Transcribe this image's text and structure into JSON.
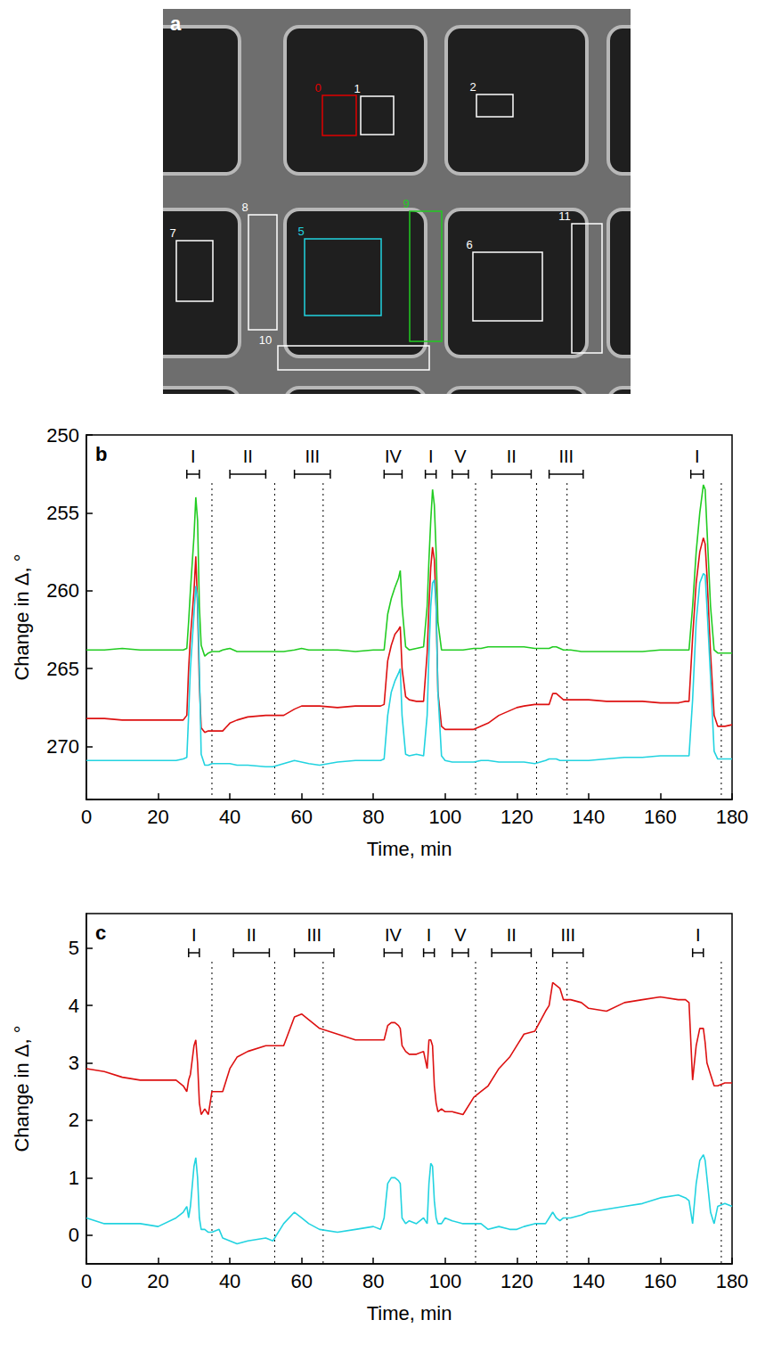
{
  "image_panel": {
    "panel_label": "a",
    "rois": [
      {
        "label": "0",
        "color": "#e00000"
      },
      {
        "label": "1",
        "color": "#ffffff"
      },
      {
        "label": "2",
        "color": "#ffffff"
      },
      {
        "label": "5",
        "color": "#22d3e0"
      },
      {
        "label": "6",
        "color": "#ffffff"
      },
      {
        "label": "7",
        "color": "#ffffff"
      },
      {
        "label": "8",
        "color": "#ffffff"
      },
      {
        "label": "9",
        "color": "#22cc22"
      },
      {
        "label": "10",
        "color": "#ffffff"
      },
      {
        "label": "11",
        "color": "#ffffff"
      }
    ]
  },
  "chart_data": [
    {
      "type": "line",
      "panel_label": "b",
      "x_label": "Time, min",
      "y_label": "Change in Δ, °",
      "xlim": [
        0,
        180
      ],
      "xticks": [
        0,
        20,
        40,
        60,
        80,
        100,
        120,
        140,
        160,
        180
      ],
      "ylim": [
        273.4,
        250
      ],
      "yticks": [
        250,
        255,
        260,
        265,
        270
      ],
      "x": [
        0,
        5,
        10,
        15,
        20,
        25,
        27,
        28,
        28.5,
        29,
        30,
        30.5,
        31,
        31.5,
        32,
        33,
        34,
        35,
        37,
        38,
        40,
        42,
        45,
        50,
        52,
        55,
        58,
        60,
        62,
        65,
        70,
        75,
        80,
        82,
        83,
        84,
        85,
        86,
        87,
        87.5,
        88,
        89,
        90,
        92,
        94,
        95,
        95.5,
        96,
        96.5,
        97,
        97.5,
        98,
        99,
        100,
        102,
        105,
        108,
        110,
        112,
        115,
        118,
        120,
        122,
        125,
        128,
        129,
        130,
        131,
        132,
        133,
        135,
        138,
        140,
        145,
        150,
        155,
        160,
        165,
        167,
        168,
        169,
        170,
        171,
        172,
        172.5,
        173,
        174,
        175,
        176,
        178,
        180
      ],
      "series": [
        {
          "color": "#22cc22",
          "values": [
            263.8,
            263.8,
            263.7,
            263.8,
            263.8,
            263.8,
            263.8,
            263.7,
            262,
            260,
            256.5,
            254,
            255.5,
            261,
            263.5,
            264.2,
            264,
            263.9,
            263.9,
            263.8,
            263.7,
            263.9,
            263.9,
            263.9,
            263.9,
            263.9,
            263.8,
            263.7,
            263.8,
            263.8,
            263.8,
            263.9,
            263.8,
            263.8,
            263.8,
            261.5,
            260.5,
            259.8,
            259.2,
            258.7,
            261,
            263.6,
            263.8,
            263.7,
            263.6,
            261,
            258,
            255.5,
            253.5,
            254.5,
            257.5,
            262,
            263.8,
            263.8,
            263.8,
            263.8,
            263.7,
            263.7,
            263.6,
            263.6,
            263.6,
            263.6,
            263.6,
            263.7,
            263.7,
            263.7,
            263.6,
            263.6,
            263.7,
            263.8,
            263.8,
            263.9,
            263.9,
            263.9,
            263.9,
            263.9,
            263.8,
            263.8,
            263.8,
            263.8,
            261,
            257.5,
            255,
            253.2,
            253.5,
            256,
            261,
            263.8,
            264,
            264,
            264
          ]
        },
        {
          "color": "#dd1111",
          "values": [
            268.2,
            268.2,
            268.3,
            268.3,
            268.3,
            268.3,
            268.3,
            268,
            265,
            263,
            260,
            257.8,
            261,
            266,
            268.8,
            269.1,
            269,
            269,
            269,
            269,
            268.5,
            268.3,
            268.1,
            268,
            268,
            268,
            267.6,
            267.4,
            267.4,
            267.4,
            267.5,
            267.4,
            267.4,
            267.4,
            267.3,
            264.5,
            263.5,
            262.8,
            262.5,
            262.3,
            265,
            266.8,
            267,
            267.1,
            267.1,
            264,
            261,
            258.5,
            257.2,
            258,
            261,
            266.5,
            268.7,
            268.9,
            268.9,
            268.9,
            268.9,
            268.7,
            268.5,
            268,
            267.7,
            267.5,
            267.4,
            267.3,
            267.3,
            267.3,
            266.6,
            266.6,
            266.8,
            267,
            267,
            267,
            267,
            267.1,
            267.1,
            267.1,
            267.2,
            267.2,
            267.1,
            267.1,
            263,
            259.5,
            257.5,
            256.6,
            257,
            259,
            264,
            268,
            268.7,
            268.7,
            268.6
          ]
        },
        {
          "color": "#22d3e0",
          "values": [
            270.9,
            270.9,
            270.9,
            270.9,
            270.9,
            270.9,
            270.8,
            270.7,
            268,
            265,
            261.5,
            259.7,
            260.5,
            265,
            270.5,
            271.2,
            271.2,
            271.1,
            271.1,
            271.1,
            271.1,
            271.2,
            271.2,
            271.3,
            271.3,
            271.1,
            270.9,
            271,
            271.1,
            271.2,
            271,
            270.9,
            270.9,
            270.9,
            270.8,
            268,
            266.5,
            265.8,
            265.3,
            265,
            268,
            270.5,
            270.6,
            270.5,
            270.6,
            268,
            264,
            261,
            259.5,
            259.3,
            261,
            266.5,
            270.6,
            270.9,
            271,
            271,
            271,
            270.9,
            270.9,
            271,
            271,
            271,
            271,
            271.1,
            270.9,
            270.8,
            270.8,
            270.8,
            270.9,
            270.9,
            270.9,
            270.9,
            270.9,
            270.8,
            270.7,
            270.7,
            270.6,
            270.6,
            270.6,
            270.6,
            267,
            262,
            259.5,
            258.9,
            259,
            261,
            265.5,
            270.3,
            270.8,
            270.8,
            270.8
          ]
        }
      ],
      "phases": [
        {
          "label": "I",
          "start": 28,
          "end": 31.5
        },
        {
          "label": "II",
          "start": 40,
          "end": 50
        },
        {
          "label": "III",
          "start": 58,
          "end": 68
        },
        {
          "label": "IV",
          "start": 83,
          "end": 88
        },
        {
          "label": "I",
          "start": 94.5,
          "end": 97.5
        },
        {
          "label": "V",
          "start": 102,
          "end": 106.5
        },
        {
          "label": "II",
          "start": 113,
          "end": 124
        },
        {
          "label": "III",
          "start": 129,
          "end": 138.5
        },
        {
          "label": "I",
          "start": 168.5,
          "end": 172
        }
      ],
      "dotted_lines": [
        35,
        52.5,
        66,
        108.5,
        125.5,
        134,
        177
      ]
    },
    {
      "type": "line",
      "panel_label": "c",
      "x_label": "Time, min",
      "y_label": "Change in Δ, °",
      "xlim": [
        0,
        180
      ],
      "xticks": [
        0,
        20,
        40,
        60,
        80,
        100,
        120,
        140,
        160,
        180
      ],
      "ylim": [
        -0.5,
        5.6
      ],
      "yticks": [
        0,
        1,
        2,
        3,
        4,
        5
      ],
      "x": [
        0,
        5,
        10,
        15,
        20,
        25,
        27,
        28,
        28.5,
        29,
        30,
        30.5,
        31,
        31.5,
        32,
        33,
        34,
        35,
        37,
        38,
        40,
        42,
        45,
        50,
        52,
        55,
        58,
        60,
        62,
        65,
        70,
        75,
        80,
        82,
        83,
        84,
        85,
        86,
        87,
        87.5,
        88,
        89,
        90,
        92,
        94,
        95,
        95.5,
        96,
        96.5,
        97,
        97.5,
        98,
        99,
        100,
        102,
        105,
        108,
        110,
        112,
        115,
        118,
        120,
        122,
        125,
        128,
        129,
        130,
        131,
        132,
        133,
        135,
        138,
        140,
        145,
        150,
        155,
        160,
        165,
        167,
        168,
        169,
        170,
        171,
        172,
        172.5,
        173,
        174,
        175,
        176,
        178,
        180
      ],
      "series": [
        {
          "color": "#dd1111",
          "values": [
            2.9,
            2.85,
            2.75,
            2.7,
            2.7,
            2.7,
            2.6,
            2.5,
            2.7,
            2.8,
            3.3,
            3.4,
            3.0,
            2.3,
            2.1,
            2.2,
            2.1,
            2.5,
            2.5,
            2.5,
            2.9,
            3.1,
            3.2,
            3.3,
            3.3,
            3.3,
            3.8,
            3.85,
            3.75,
            3.6,
            3.5,
            3.4,
            3.4,
            3.4,
            3.4,
            3.65,
            3.7,
            3.7,
            3.65,
            3.6,
            3.3,
            3.2,
            3.15,
            3.15,
            3.2,
            2.9,
            3.4,
            3.4,
            3.3,
            2.6,
            2.3,
            2.15,
            2.2,
            2.15,
            2.15,
            2.1,
            2.4,
            2.5,
            2.6,
            2.9,
            3.1,
            3.3,
            3.5,
            3.55,
            3.9,
            4.0,
            4.4,
            4.35,
            4.3,
            4.1,
            4.1,
            4.05,
            3.95,
            3.9,
            4.05,
            4.1,
            4.15,
            4.1,
            4.1,
            4.05,
            2.7,
            3.3,
            3.6,
            3.6,
            3.35,
            3.0,
            2.8,
            2.6,
            2.6,
            2.65,
            2.65
          ]
        },
        {
          "color": "#22d3e0",
          "values": [
            0.3,
            0.2,
            0.2,
            0.2,
            0.15,
            0.3,
            0.4,
            0.5,
            0.3,
            0.5,
            1.2,
            1.35,
            1.0,
            0.3,
            0.1,
            0.1,
            0.05,
            0.05,
            0.1,
            -0.05,
            -0.1,
            -0.15,
            -0.1,
            -0.05,
            -0.1,
            0.2,
            0.4,
            0.3,
            0.2,
            0.1,
            0.05,
            0.1,
            0.15,
            0.1,
            0.3,
            0.9,
            1.0,
            1.0,
            0.95,
            0.9,
            0.3,
            0.2,
            0.25,
            0.2,
            0.3,
            0.2,
            0.9,
            1.25,
            1.2,
            0.6,
            0.3,
            0.2,
            0.2,
            0.3,
            0.25,
            0.2,
            0.2,
            0.2,
            0.1,
            0.15,
            0.1,
            0.1,
            0.15,
            0.2,
            0.2,
            0.3,
            0.4,
            0.3,
            0.25,
            0.3,
            0.3,
            0.35,
            0.4,
            0.45,
            0.5,
            0.55,
            0.65,
            0.7,
            0.65,
            0.6,
            0.2,
            0.9,
            1.3,
            1.4,
            1.3,
            1.0,
            0.4,
            0.2,
            0.5,
            0.55,
            0.5
          ]
        }
      ],
      "phases": [
        {
          "label": "I",
          "start": 28.5,
          "end": 31.5
        },
        {
          "label": "II",
          "start": 41,
          "end": 51
        },
        {
          "label": "III",
          "start": 58,
          "end": 69
        },
        {
          "label": "IV",
          "start": 83,
          "end": 88
        },
        {
          "label": "I",
          "start": 94,
          "end": 97
        },
        {
          "label": "V",
          "start": 102,
          "end": 106.5
        },
        {
          "label": "II",
          "start": 113,
          "end": 124
        },
        {
          "label": "III",
          "start": 130,
          "end": 138.5
        },
        {
          "label": "I",
          "start": 169,
          "end": 172
        }
      ],
      "dotted_lines": [
        35,
        52.5,
        66,
        108.5,
        125.5,
        134,
        177
      ]
    }
  ]
}
